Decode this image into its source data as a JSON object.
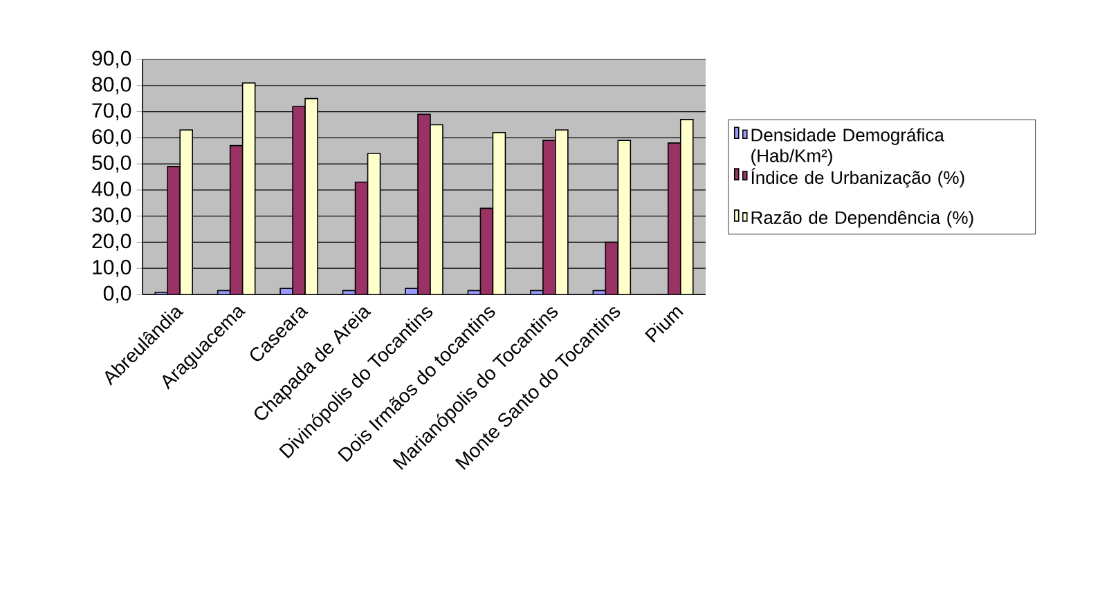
{
  "chart_data": {
    "type": "bar",
    "categories": [
      "Abreulândia",
      "Araguacema",
      "Caseara",
      "Chapada de Areia",
      "Divinópolis do Tocantins",
      "Dois Irmãos do tocantins",
      "Marianópolis do Tocantins",
      "Monte Santo do Tocantins",
      "Pium"
    ],
    "series": [
      {
        "name": "Densidade Demográfica (Hab/Km²)",
        "color": "#9999ff",
        "values": [
          0.8,
          1.5,
          2.3,
          1.5,
          2.3,
          1.5,
          1.5,
          1.5,
          0
        ]
      },
      {
        "name": "Índice de Urbanização (%)",
        "color": "#993366",
        "values": [
          49,
          57,
          72,
          43,
          69,
          33,
          59,
          20,
          58
        ]
      },
      {
        "name": "Razão de Dependência (%)",
        "color": "#ffffcc",
        "values": [
          63,
          81,
          75,
          54,
          65,
          62,
          63,
          59,
          67
        ]
      }
    ],
    "ylim": [
      0,
      90
    ],
    "yticks": [
      {
        "value": 0,
        "label": "0,0"
      },
      {
        "value": 10,
        "label": "10,0"
      },
      {
        "value": 20,
        "label": "20,0"
      },
      {
        "value": 30,
        "label": "30,0"
      },
      {
        "value": 40,
        "label": "40,0"
      },
      {
        "value": 50,
        "label": "50,0"
      },
      {
        "value": 60,
        "label": "60,0"
      },
      {
        "value": 70,
        "label": "70,0"
      },
      {
        "value": 80,
        "label": "80,0"
      },
      {
        "value": 90,
        "label": "90,0"
      }
    ],
    "grid": "y",
    "legend": "right"
  }
}
